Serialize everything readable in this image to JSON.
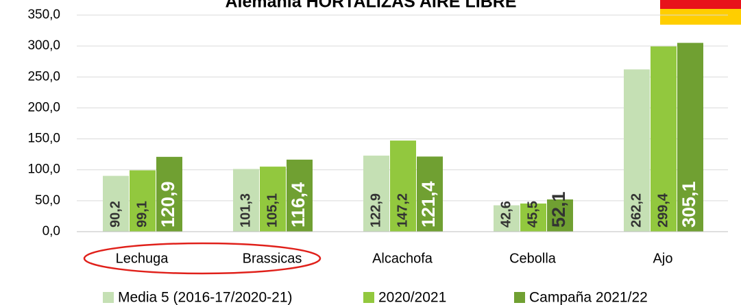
{
  "chart_data": {
    "type": "bar",
    "title": "Alemania HORTALIZAS AIRE LIBRE",
    "categories": [
      "Lechuga",
      "Brassicas",
      "Alcachofa",
      "Cebolla",
      "Ajo"
    ],
    "series": [
      {
        "name": "Media 5 (2016-17/2020-21)",
        "color": "#c5e0b4",
        "values": [
          90.2,
          101.3,
          122.9,
          42.6,
          262.2
        ],
        "value_labels": [
          "90,2",
          "101,3",
          "122,9",
          "42,6",
          "262,2"
        ]
      },
      {
        "name": "2020/2021",
        "color": "#92c83e",
        "values": [
          99.1,
          105.1,
          147.2,
          45.5,
          299.4
        ],
        "value_labels": [
          "99,1",
          "105,1",
          "147,2",
          "45,5",
          "299,4"
        ]
      },
      {
        "name": "Campaña 2021/22",
        "color": "#70a032",
        "values": [
          120.9,
          116.4,
          121.4,
          52.1,
          305.1
        ],
        "value_labels": [
          "120,9",
          "116,4",
          "121,4",
          "52,1",
          "305,1"
        ]
      }
    ],
    "ylim": [
      0,
      350
    ],
    "yticks": [
      {
        "value": 0,
        "label": "0,0"
      },
      {
        "value": 50,
        "label": "50,0"
      },
      {
        "value": 100,
        "label": "100,0"
      },
      {
        "value": 150,
        "label": "150,0"
      },
      {
        "value": 200,
        "label": "200,0"
      },
      {
        "value": 250,
        "label": "250,0"
      },
      {
        "value": 300,
        "label": "300,0"
      },
      {
        "value": 350,
        "label": "350,0"
      }
    ],
    "grid": true,
    "legend": "bottom"
  }
}
